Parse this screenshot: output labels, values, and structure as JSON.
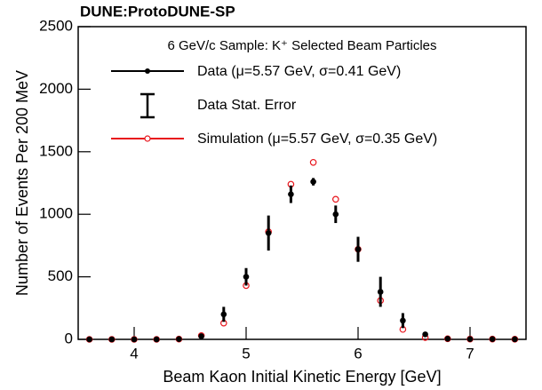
{
  "chart_data": {
    "type": "scatter",
    "title": "DUNE:ProtoDUNE-SP",
    "legend_title": "6 GeV/c Sample: K⁺ Selected Beam Particles",
    "error_label": "Data Stat. Error",
    "xlabel": "Beam Kaon Initial Kinetic Energy [GeV]",
    "ylabel": "Number of Events Per 200 MeV",
    "x": [
      3.6,
      3.8,
      4.0,
      4.2,
      4.4,
      4.6,
      4.8,
      5.0,
      5.2,
      5.4,
      5.6,
      5.8,
      6.0,
      6.2,
      6.4,
      6.6,
      6.8,
      7.0,
      7.2,
      7.4
    ],
    "series": [
      {
        "name": "Data (μ=5.57 GeV, σ=0.41 GeV)",
        "color": "#000000",
        "values": [
          0,
          0,
          0,
          0,
          2,
          25,
          200,
          500,
          850,
          1160,
          1260,
          1000,
          720,
          380,
          150,
          40,
          5,
          2,
          2,
          1
        ],
        "errors": [
          0,
          0,
          0,
          0,
          2,
          8,
          60,
          70,
          140,
          70,
          30,
          70,
          100,
          120,
          60,
          15,
          3,
          2,
          2,
          1
        ]
      },
      {
        "name": "Simulation (μ=5.57 GeV, σ=0.35 GeV)",
        "color": "#e8141b",
        "values": [
          0,
          0,
          0,
          0,
          2,
          30,
          130,
          430,
          860,
          1240,
          1415,
          1120,
          720,
          310,
          80,
          15,
          5,
          2,
          2,
          1
        ]
      }
    ],
    "xlim": [
      3.5,
      7.5
    ],
    "xticks": [
      4,
      5,
      6,
      7
    ],
    "ylim": [
      0,
      2500
    ],
    "yticks": [
      0,
      500,
      1000,
      1500,
      2000,
      2500
    ]
  }
}
